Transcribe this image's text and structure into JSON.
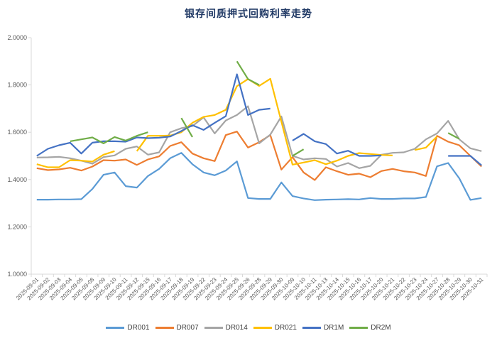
{
  "chart_data": {
    "type": "line",
    "title": "银存间质押式回购利率走势",
    "xlabel": "",
    "ylabel": "",
    "ylim": [
      1.0,
      2.0
    ],
    "yticks": [
      "1.0000",
      "1.2000",
      "1.4000",
      "1.6000",
      "1.8000",
      "2.0000"
    ],
    "grid": false,
    "legend_position": "bottom",
    "categories": [
      "2025-09-01",
      "2025-09-02",
      "2025-09-03",
      "2025-09-04",
      "2025-09-05",
      "2025-09-08",
      "2025-09-09",
      "2025-09-10",
      "2025-09-11",
      "2025-09-12",
      "2025-09-15",
      "2025-09-16",
      "2025-09-17",
      "2025-09-18",
      "2025-09-19",
      "2025-09-22",
      "2025-09-23",
      "2025-09-24",
      "2025-09-25",
      "2025-09-26",
      "2025-09-28",
      "2025-09-29",
      "2025-09-30",
      "2025-10-09",
      "2025-10-10",
      "2025-10-11",
      "2025-10-13",
      "2025-10-14",
      "2025-10-15",
      "2025-10-16",
      "2025-10-17",
      "2025-10-20",
      "2025-10-21",
      "2025-10-22",
      "2025-10-23",
      "2025-10-24",
      "2025-10-27",
      "2025-10-28",
      "2025-10-29",
      "2025-10-30",
      "2025-10-31"
    ],
    "series": [
      {
        "name": "DR001",
        "color": "#5b9bd5",
        "values": [
          1.315,
          1.315,
          1.316,
          1.316,
          1.317,
          1.36,
          1.42,
          1.43,
          1.372,
          1.366,
          1.415,
          1.445,
          1.49,
          1.513,
          1.465,
          1.43,
          1.418,
          1.438,
          1.477,
          1.322,
          1.318,
          1.318,
          1.388,
          1.33,
          1.32,
          1.313,
          1.315,
          1.316,
          1.317,
          1.316,
          1.322,
          1.318,
          1.318,
          1.32,
          1.32,
          1.326,
          1.456,
          1.47,
          1.405,
          1.314,
          1.322
        ]
      },
      {
        "name": "DR007",
        "color": "#ed7d31",
        "values": [
          1.448,
          1.44,
          1.443,
          1.45,
          1.438,
          1.455,
          1.482,
          1.48,
          1.485,
          1.462,
          1.485,
          1.498,
          1.542,
          1.558,
          1.51,
          1.49,
          1.478,
          1.588,
          1.603,
          1.535,
          1.558,
          1.588,
          1.442,
          1.495,
          1.43,
          1.398,
          1.452,
          1.435,
          1.42,
          1.425,
          1.41,
          1.436,
          1.445,
          1.435,
          1.43,
          1.415,
          1.585,
          1.56,
          1.545,
          1.5,
          1.455
        ]
      },
      {
        "name": "DR014",
        "color": "#a5a5a5",
        "values": [
          1.493,
          1.494,
          1.496,
          1.49,
          1.48,
          1.467,
          1.495,
          1.502,
          1.53,
          1.54,
          1.505,
          1.515,
          1.6,
          1.617,
          1.626,
          1.663,
          1.595,
          1.65,
          1.673,
          1.71,
          1.553,
          1.59,
          1.667,
          1.5,
          1.485,
          1.49,
          1.487,
          1.455,
          1.47,
          1.448,
          1.458,
          1.505,
          1.513,
          1.515,
          1.53,
          1.57,
          1.595,
          1.648,
          1.57,
          1.532,
          1.52
        ]
      },
      {
        "name": "DR021",
        "color": "#ffc000",
        "values": [
          1.465,
          1.452,
          1.452,
          1.482,
          1.48,
          1.476,
          1.505,
          1.52,
          null,
          1.52,
          1.585,
          1.585,
          1.586,
          1.6,
          1.64,
          1.665,
          1.673,
          1.695,
          1.795,
          1.825,
          1.796,
          1.826,
          1.645,
          1.463,
          1.472,
          1.482,
          1.465,
          1.48,
          1.5,
          1.512,
          1.508,
          1.504,
          1.502,
          null,
          1.525,
          1.535,
          1.582,
          null,
          null,
          null,
          null
        ]
      },
      {
        "name": "DR1M",
        "color": "#4472c4",
        "values": [
          1.5,
          1.53,
          1.545,
          1.556,
          1.51,
          1.556,
          1.562,
          1.562,
          1.56,
          1.578,
          1.575,
          1.577,
          1.582,
          1.605,
          1.63,
          1.61,
          1.64,
          1.668,
          1.845,
          1.673,
          1.695,
          1.7,
          null,
          1.565,
          1.593,
          1.562,
          1.55,
          1.51,
          1.522,
          1.5,
          1.5,
          1.502,
          null,
          null,
          null,
          null,
          null,
          1.5,
          1.5,
          1.5,
          1.46
        ]
      },
      {
        "name": "DR2M",
        "color": "#70ad47",
        "values": [
          null,
          null,
          null,
          1.562,
          1.57,
          1.578,
          1.553,
          1.58,
          1.565,
          1.585,
          1.6,
          null,
          null,
          1.66,
          1.58,
          null,
          null,
          null,
          1.9,
          1.825,
          1.8,
          null,
          null,
          1.5,
          1.528,
          null,
          null,
          null,
          null,
          null,
          null,
          null,
          null,
          null,
          null,
          null,
          null,
          1.597,
          1.572,
          null,
          null
        ]
      }
    ]
  },
  "legend": [
    {
      "label": "DR001",
      "color": "#5b9bd5"
    },
    {
      "label": "DR007",
      "color": "#ed7d31"
    },
    {
      "label": "DR014",
      "color": "#a5a5a5"
    },
    {
      "label": "DR021",
      "color": "#ffc000"
    },
    {
      "label": "DR1M",
      "color": "#4472c4"
    },
    {
      "label": "DR2M",
      "color": "#70ad47"
    }
  ]
}
